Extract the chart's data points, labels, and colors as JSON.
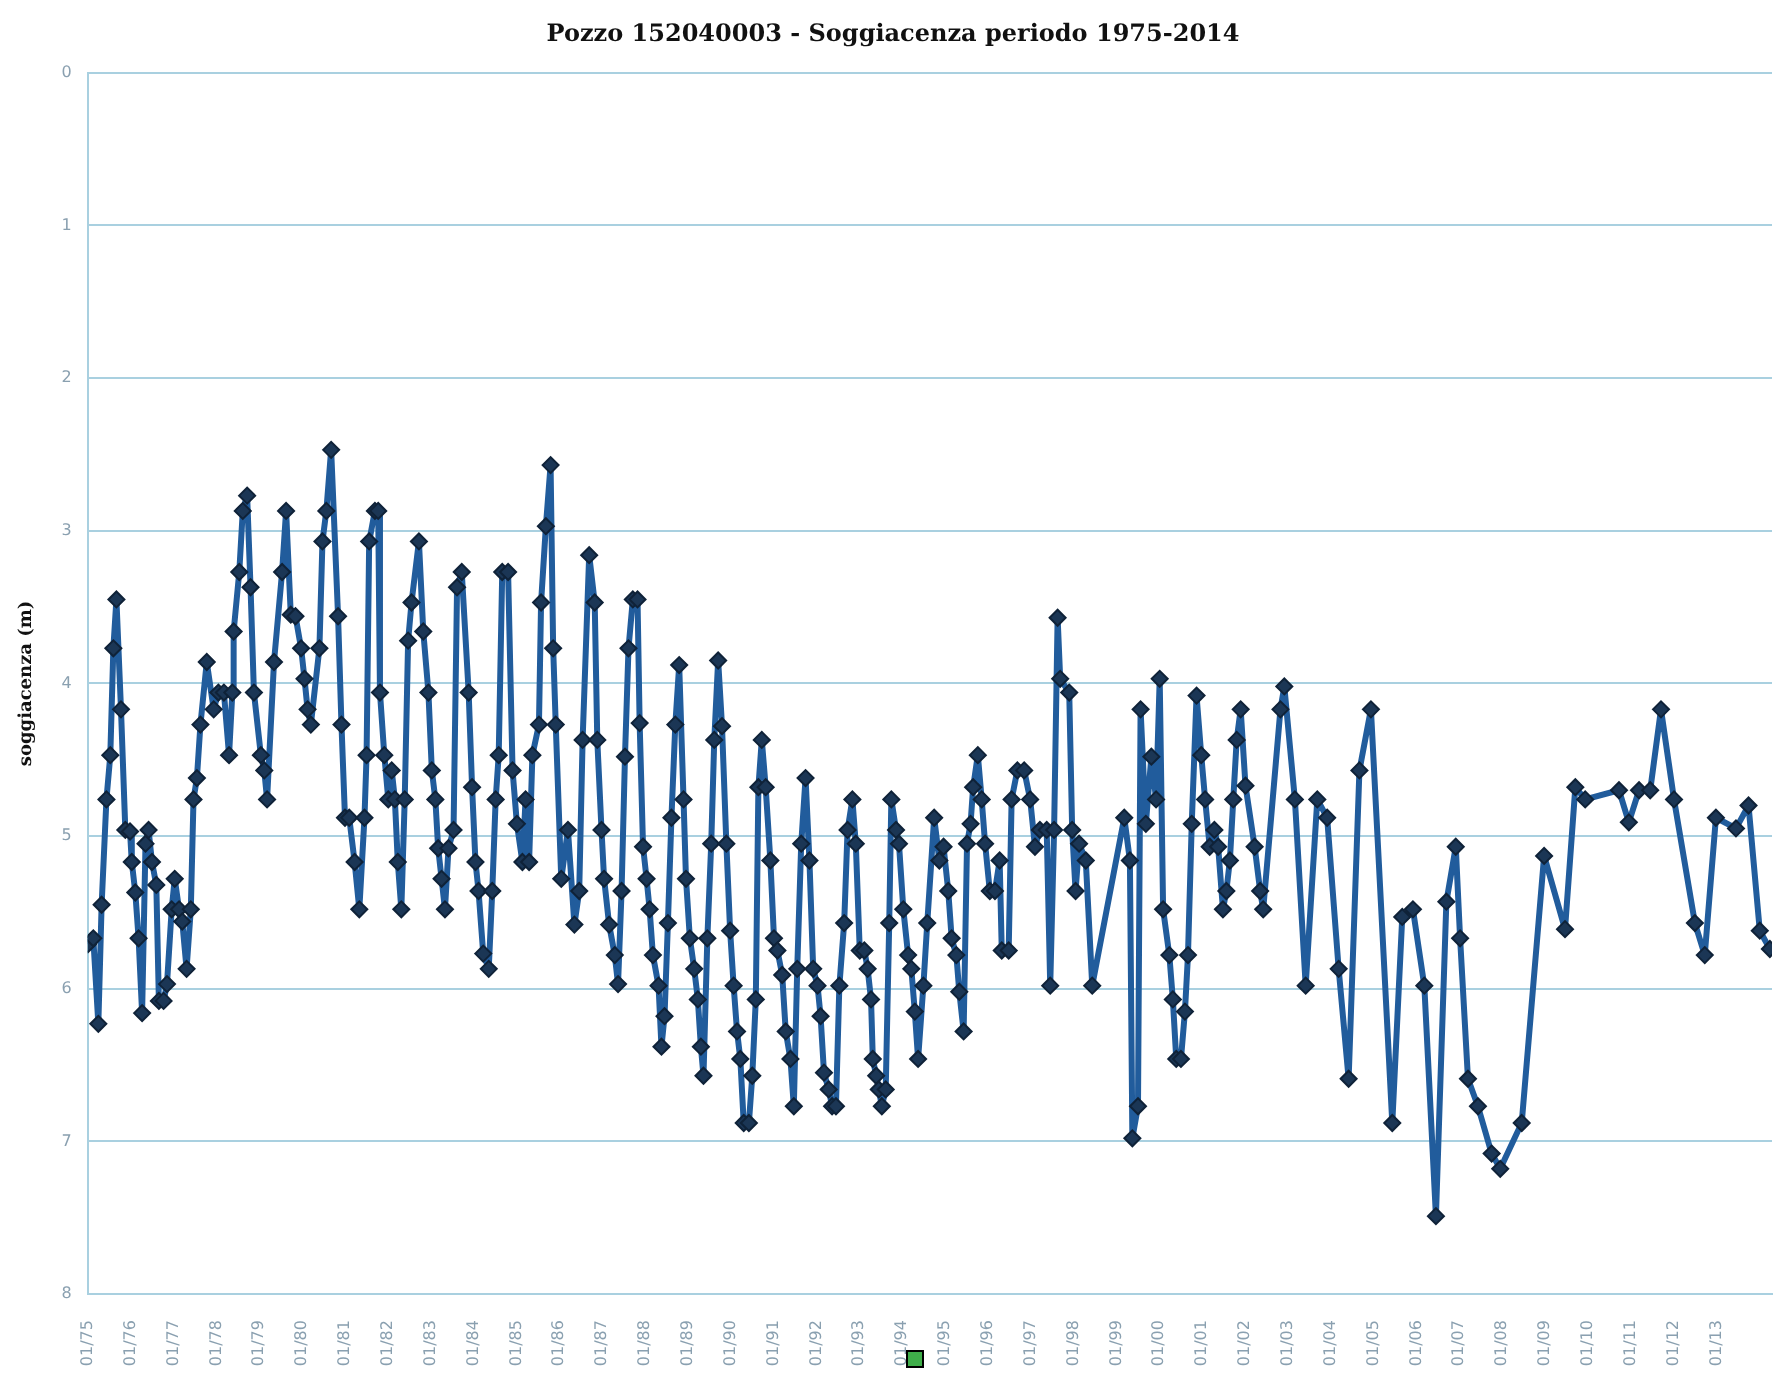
{
  "chart_data": {
    "type": "line",
    "title": "Pozzo 152040003 - Soggiacenza periodo 1975-2014",
    "ylabel": "soggiacenza (m)",
    "x": [
      "1975-01-01",
      "1975-02-17",
      "1975-04-01",
      "1975-04-29",
      "1975-06-09",
      "1975-07-12",
      "1975-08-07",
      "1975-09-02",
      "1975-10-11",
      "1975-11-17",
      "1975-12-27",
      "1976-01-11",
      "1976-02-10",
      "1976-03-09",
      "1976-04-08",
      "1976-05-07",
      "1976-06-02",
      "1976-07-01",
      "1976-08-07",
      "1976-08-29",
      "1976-10-08",
      "1976-11-06",
      "1976-12-16",
      "1977-01-11",
      "1977-02-17",
      "1977-03-16",
      "1977-04-22",
      "1977-05-28",
      "1977-06-20",
      "1977-07-19",
      "1977-08-18",
      "1977-10-11",
      "1977-12-09",
      "1978-01-18",
      "1978-03-06",
      "1978-04-19",
      "1978-05-17",
      "1978-05-28",
      "1978-07-15",
      "1978-08-14",
      "1978-09-20",
      "1978-10-19",
      "1978-11-17",
      "1979-01-15",
      "1979-02-13",
      "1979-03-09",
      "1979-05-07",
      "1979-07-15",
      "1979-08-18",
      "1979-09-27",
      "1979-11-06",
      "1979-12-24",
      "1980-01-22",
      "1980-02-17",
      "1980-03-16",
      "1980-05-28",
      "1980-06-23",
      "1980-07-26",
      "1980-09-05",
      "1980-11-03",
      "1980-12-02",
      "1981-01-01",
      "1981-02-06",
      "1981-03-24",
      "1981-05-03",
      "1981-06-16",
      "1981-07-04",
      "1981-07-26",
      "1981-09-13",
      "1981-10-11",
      "1981-10-26",
      "1981-12-02",
      "1982-01-05",
      "1982-02-03",
      "1982-03-02",
      "1982-03-27",
      "1982-04-26",
      "1982-05-25",
      "1982-06-23",
      "1982-07-22",
      "1982-09-23",
      "1982-10-30",
      "1982-12-13",
      "1983-01-11",
      "1983-02-10",
      "1983-03-06",
      "1983-04-04",
      "1983-05-03",
      "1983-06-02",
      "1983-07-15",
      "1983-08-14",
      "1983-09-23",
      "1983-11-21",
      "1983-12-20",
      "1984-01-18",
      "1984-02-13",
      "1984-03-24",
      "1984-05-10",
      "1984-06-09",
      "1984-07-08",
      "1984-08-03",
      "1984-09-02",
      "1984-10-22",
      "1984-11-29",
      "1985-01-05",
      "1985-02-21",
      "1985-03-20",
      "1985-04-19",
      "1985-05-17",
      "1985-07-12",
      "1985-07-30",
      "1985-09-09",
      "1985-10-19",
      "1985-11-10",
      "1985-12-02",
      "1986-01-18",
      "1986-03-16",
      "1986-05-10",
      "1986-06-20",
      "1986-07-19",
      "1986-09-13",
      "1986-10-30",
      "1986-11-21",
      "1986-12-27",
      "1987-01-18",
      "1987-03-02",
      "1987-04-19",
      "1987-05-17",
      "1987-06-16",
      "1987-07-15",
      "1987-08-14",
      "1987-09-20",
      "1987-10-30",
      "1987-11-17",
      "1987-12-16",
      "1988-01-15",
      "1988-02-10",
      "1988-03-09",
      "1988-04-26",
      "1988-05-21",
      "1988-06-16",
      "1988-07-15",
      "1988-08-14",
      "1988-09-16",
      "1988-10-19",
      "1988-11-25",
      "1988-12-16",
      "1989-01-18",
      "1989-02-24",
      "1989-03-27",
      "1989-04-22",
      "1989-05-14",
      "1989-06-16",
      "1989-07-19",
      "1989-08-14",
      "1989-09-16",
      "1989-10-19",
      "1989-11-25",
      "1989-12-27",
      "1990-01-26",
      "1990-02-24",
      "1990-03-24",
      "1990-04-22",
      "1990-06-05",
      "1990-07-04",
      "1990-08-03",
      "1990-08-25",
      "1990-09-23",
      "1990-10-26",
      "1990-12-05",
      "1991-01-05",
      "1991-02-03",
      "1991-03-16",
      "1991-04-15",
      "1991-05-25",
      "1991-06-23",
      "1991-07-22",
      "1991-08-25",
      "1991-10-01",
      "1991-11-03",
      "1991-12-05",
      "1992-01-11",
      "1992-02-06",
      "1992-03-06",
      "1992-04-15",
      "1992-05-14",
      "1992-06-16",
      "1992-07-15",
      "1992-08-25",
      "1992-09-23",
      "1992-11-03",
      "1992-12-02",
      "1993-01-05",
      "1993-02-13",
      "1993-03-13",
      "1993-04-11",
      "1993-04-26",
      "1993-05-25",
      "1993-06-16",
      "1993-07-12",
      "1993-08-14",
      "1993-09-13",
      "1993-10-01",
      "1993-11-10",
      "1993-12-05",
      "1994-01-11",
      "1994-02-21",
      "1994-03-20",
      "1994-04-19",
      "1994-05-17",
      "1994-07-01",
      "1994-08-03",
      "1994-10-01",
      "1994-11-14",
      "1994-12-20",
      "1995-01-29",
      "1995-02-27",
      "1995-04-08",
      "1995-05-03",
      "1995-06-09",
      "1995-07-08",
      "1995-08-07",
      "1995-08-29",
      "1995-10-08",
      "1995-11-10",
      "1995-12-09",
      "1996-01-18",
      "1996-03-02",
      "1996-04-11",
      "1996-04-29",
      "1996-06-27",
      "1996-07-22",
      "1996-09-09",
      "1996-11-06",
      "1996-12-27",
      "1997-02-06",
      "1997-03-20",
      "1997-05-17",
      "1997-06-16",
      "1997-07-19",
      "1997-08-18",
      "1997-09-09",
      "1997-11-25",
      "1997-12-20",
      "1998-01-18",
      "1998-02-17",
      "1998-04-15",
      "1998-06-09",
      "1999-03-09",
      "1999-04-26",
      "1999-05-17",
      "1999-07-04",
      "1999-07-26",
      "1999-09-09",
      "1999-10-26",
      "1999-12-05",
      "2000-01-05",
      "2000-02-03",
      "2000-03-27",
      "2000-04-26",
      "2000-05-25",
      "2000-07-04",
      "2000-08-07",
      "2000-09-02",
      "2000-10-04",
      "2000-11-14",
      "2000-12-24",
      "2001-01-26",
      "2001-03-06",
      "2001-04-15",
      "2001-05-17",
      "2001-06-27",
      "2001-07-26",
      "2001-08-25",
      "2001-09-23",
      "2001-10-22",
      "2001-11-25",
      "2002-01-05",
      "2002-03-24",
      "2002-05-10",
      "2002-06-05",
      "2002-10-30",
      "2002-12-02",
      "2003-03-02",
      "2003-06-02",
      "2003-09-09",
      "2003-12-02",
      "2004-03-09",
      "2004-06-02",
      "2004-09-02",
      "2004-12-09",
      "2005-06-09",
      "2005-09-02",
      "2005-12-02",
      "2006-03-09",
      "2006-06-16",
      "2006-09-13",
      "2006-12-02",
      "2007-01-08",
      "2007-03-16",
      "2007-06-09",
      "2007-10-04",
      "2007-12-16",
      "2008-06-16",
      "2008-12-24",
      "2009-06-20",
      "2009-09-16",
      "2009-12-09",
      "2010-09-23",
      "2010-12-16",
      "2011-03-13",
      "2011-06-16",
      "2011-09-16",
      "2012-01-05",
      "2012-07-01",
      "2012-09-23",
      "2012-12-27",
      "2013-06-16",
      "2013-10-01",
      "2014-01-05",
      "2014-04-01"
    ],
    "series": [
      {
        "color": "#215c9c",
        "values": [
          5.71,
          5.67,
          6.23,
          5.45,
          4.76,
          4.47,
          3.77,
          3.45,
          4.17,
          4.96,
          4.97,
          5.17,
          5.37,
          5.67,
          6.16,
          5.05,
          4.96,
          5.17,
          5.32,
          6.08,
          6.08,
          5.97,
          5.48,
          5.28,
          5.48,
          5.56,
          5.87,
          5.48,
          4.76,
          4.62,
          4.27,
          3.86,
          4.17,
          4.06,
          4.06,
          4.47,
          4.06,
          3.66,
          3.27,
          2.87,
          2.77,
          3.37,
          4.06,
          4.47,
          4.57,
          4.76,
          3.86,
          3.27,
          2.87,
          3.55,
          3.56,
          3.77,
          3.97,
          4.17,
          4.27,
          3.77,
          3.07,
          2.87,
          2.47,
          3.56,
          4.27,
          4.88,
          4.88,
          5.17,
          5.48,
          4.88,
          4.47,
          3.07,
          2.87,
          2.87,
          4.06,
          4.47,
          4.76,
          4.57,
          4.76,
          5.17,
          5.48,
          4.76,
          3.72,
          3.47,
          3.07,
          3.66,
          4.06,
          4.57,
          4.76,
          5.08,
          5.28,
          5.48,
          5.08,
          4.96,
          3.37,
          3.27,
          4.06,
          4.68,
          5.17,
          5.36,
          5.77,
          5.87,
          5.36,
          4.76,
          4.47,
          3.27,
          3.27,
          4.57,
          4.92,
          5.17,
          4.76,
          5.17,
          4.47,
          4.27,
          3.47,
          2.97,
          2.57,
          3.77,
          4.27,
          5.28,
          4.96,
          5.58,
          5.36,
          4.37,
          3.16,
          3.47,
          4.37,
          4.96,
          5.28,
          5.58,
          5.78,
          5.97,
          5.36,
          4.48,
          3.77,
          3.45,
          3.45,
          4.26,
          5.07,
          5.28,
          5.48,
          5.78,
          5.98,
          6.38,
          6.18,
          5.57,
          4.88,
          4.27,
          3.88,
          4.76,
          5.28,
          5.67,
          5.87,
          6.07,
          6.38,
          6.57,
          5.67,
          5.05,
          4.37,
          3.85,
          4.28,
          5.05,
          5.62,
          5.98,
          6.28,
          6.46,
          6.88,
          6.88,
          6.57,
          6.07,
          4.68,
          4.37,
          4.68,
          5.16,
          5.67,
          5.75,
          5.91,
          6.28,
          6.46,
          6.77,
          5.87,
          5.05,
          4.62,
          5.16,
          5.87,
          5.98,
          6.18,
          6.55,
          6.66,
          6.77,
          6.77,
          5.98,
          5.57,
          4.96,
          4.76,
          5.05,
          5.75,
          5.75,
          5.87,
          6.07,
          6.46,
          6.57,
          6.66,
          6.77,
          6.66,
          5.57,
          4.76,
          4.96,
          5.05,
          5.48,
          5.78,
          5.87,
          6.15,
          6.46,
          5.98,
          5.57,
          4.88,
          5.16,
          5.07,
          5.36,
          5.67,
          5.78,
          6.02,
          6.28,
          5.05,
          4.92,
          4.68,
          4.47,
          4.76,
          5.05,
          5.36,
          5.36,
          5.16,
          5.75,
          5.75,
          4.76,
          4.57,
          4.57,
          4.76,
          5.07,
          4.96,
          4.96,
          5.98,
          4.96,
          3.57,
          3.97,
          4.06,
          4.96,
          5.36,
          5.05,
          5.16,
          5.98,
          4.88,
          5.16,
          6.98,
          6.77,
          4.17,
          4.92,
          4.48,
          4.76,
          3.97,
          5.48,
          5.78,
          6.07,
          6.46,
          6.46,
          6.15,
          5.78,
          4.92,
          4.08,
          4.47,
          4.76,
          5.07,
          4.96,
          5.07,
          5.48,
          5.36,
          5.16,
          4.76,
          4.37,
          4.17,
          4.67,
          5.07,
          5.36,
          5.48,
          4.17,
          4.02,
          4.76,
          5.98,
          4.76,
          4.88,
          5.87,
          6.59,
          4.57,
          4.17,
          6.88,
          5.53,
          5.48,
          5.98,
          7.49,
          5.43,
          5.07,
          5.67,
          6.59,
          6.77,
          7.08,
          7.18,
          6.88,
          5.13,
          5.61,
          4.68,
          4.76,
          4.7,
          4.91,
          4.7,
          4.7,
          4.17,
          4.76,
          5.57,
          5.78,
          4.88,
          4.95,
          4.8,
          5.62,
          5.74
        ]
      }
    ],
    "xlim": [
      "1975-01-01",
      "2014-04-19"
    ],
    "xticks": [
      {
        "value": "1975-01",
        "label": "01/75"
      },
      {
        "value": "1976-01",
        "label": "01/76"
      },
      {
        "value": "1977-01",
        "label": "01/77"
      },
      {
        "value": "1978-01",
        "label": "01/78"
      },
      {
        "value": "1979-01",
        "label": "01/79"
      },
      {
        "value": "1980-01",
        "label": "01/80"
      },
      {
        "value": "1981-01",
        "label": "01/81"
      },
      {
        "value": "1982-01",
        "label": "01/82"
      },
      {
        "value": "1983-01",
        "label": "01/83"
      },
      {
        "value": "1984-01",
        "label": "01/84"
      },
      {
        "value": "1985-01",
        "label": "01/85"
      },
      {
        "value": "1986-01",
        "label": "01/86"
      },
      {
        "value": "1987-01",
        "label": "01/87"
      },
      {
        "value": "1988-01",
        "label": "01/88"
      },
      {
        "value": "1989-01",
        "label": "01/89"
      },
      {
        "value": "1990-01",
        "label": "01/90"
      },
      {
        "value": "1991-01",
        "label": "01/91"
      },
      {
        "value": "1992-01",
        "label": "01/92"
      },
      {
        "value": "1993-01",
        "label": "01/93"
      },
      {
        "value": "1994-01",
        "label": "01/94"
      },
      {
        "value": "1995-01",
        "label": "01/95"
      },
      {
        "value": "1996-01",
        "label": "01/96"
      },
      {
        "value": "1997-01",
        "label": "01/97"
      },
      {
        "value": "1998-01",
        "label": "01/98"
      },
      {
        "value": "1999-01",
        "label": "01/99"
      },
      {
        "value": "2000-01",
        "label": "01/00"
      },
      {
        "value": "2001-01",
        "label": "01/01"
      },
      {
        "value": "2002-01",
        "label": "01/02"
      },
      {
        "value": "2003-01",
        "label": "01/03"
      },
      {
        "value": "2004-01",
        "label": "01/04"
      },
      {
        "value": "2005-01",
        "label": "01/05"
      },
      {
        "value": "2006-01",
        "label": "01/06"
      },
      {
        "value": "2007-01",
        "label": "01/07"
      },
      {
        "value": "2008-01",
        "label": "01/08"
      },
      {
        "value": "2009-01",
        "label": "01/09"
      },
      {
        "value": "2010-01",
        "label": "01/10"
      },
      {
        "value": "2011-01",
        "label": "01/11"
      },
      {
        "value": "2012-01",
        "label": "01/12"
      },
      {
        "value": "2013-01",
        "label": "01/13"
      }
    ],
    "ylim": [
      8,
      0
    ],
    "yticks": [
      0,
      1,
      2,
      3,
      4,
      5,
      6,
      7,
      8
    ],
    "grid": "y",
    "legend": false,
    "marker": "diamond",
    "line_style": "solid"
  }
}
